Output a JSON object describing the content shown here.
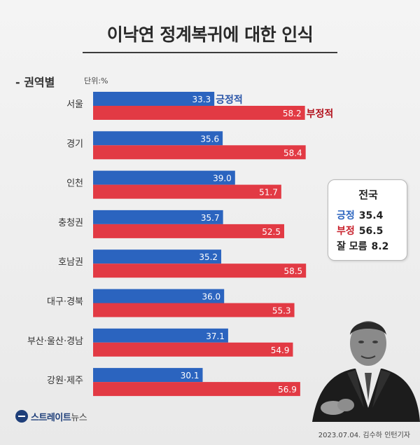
{
  "header": {
    "title": "이낙연 정계복귀에 대한 인식",
    "section": "- 권역별",
    "unit": "단위:%"
  },
  "chart_data": {
    "type": "bar",
    "orientation": "horizontal",
    "title": "이낙연 정계복귀에 대한 인식",
    "categories": [
      "서울",
      "경기",
      "인천",
      "충청권",
      "호남권",
      "대구·경북",
      "부산·울산·경남",
      "강원·제주"
    ],
    "series": [
      {
        "name": "긍정적",
        "color": "#2b64bf",
        "values": [
          33.3,
          35.6,
          39.0,
          35.7,
          35.2,
          36.0,
          37.1,
          30.1
        ]
      },
      {
        "name": "부정적",
        "color": "#e23a44",
        "values": [
          58.2,
          58.4,
          51.7,
          52.5,
          58.5,
          55.3,
          54.9,
          56.9
        ]
      }
    ],
    "value_labels": {
      "positive": [
        "33.3",
        "35.6",
        "39.0",
        "35.7",
        "35.2",
        "36.0",
        "37.1",
        "30.1"
      ],
      "negative": [
        "58.2",
        "58.4",
        "51.7",
        "52.5",
        "58.5",
        "55.3",
        "54.9",
        "56.9"
      ]
    },
    "legend_placement": "inline at first bars",
    "grid": false
  },
  "national": {
    "title": "전국",
    "rows": [
      {
        "label": "긍정",
        "value": "35.4",
        "color": "#2b64bf"
      },
      {
        "label": "부정",
        "value": "56.5",
        "color": "#c8202b"
      },
      {
        "label": "잘 모름",
        "value": "8.2",
        "color": "#222222"
      }
    ]
  },
  "footer": {
    "logo_main": "스트레이트",
    "logo_sub": "뉴스",
    "credit": "2023.07.04. 김수하 인턴기자"
  },
  "colors": {
    "positive": "#2b64bf",
    "negative": "#e23a44",
    "positive_text": "#2a55a8",
    "negative_text": "#b3121d"
  }
}
